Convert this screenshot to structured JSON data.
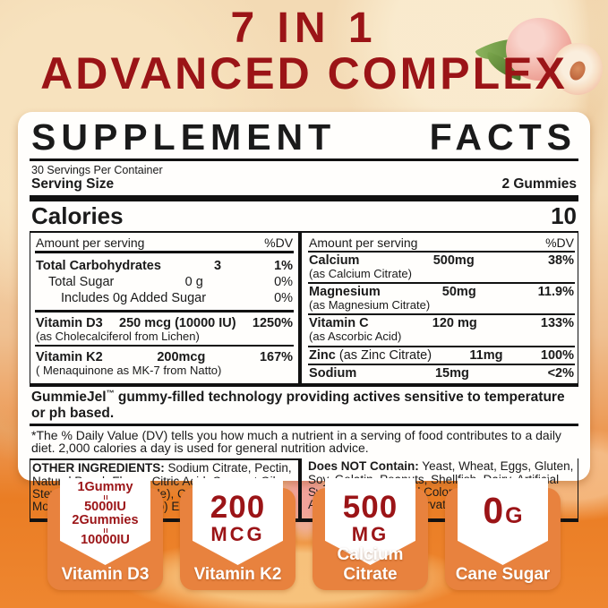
{
  "colors": {
    "brand_red": "#9b1417",
    "badge_orange": "#e8823e",
    "background_orange": "#ed7d24",
    "panel_white": "#fffefc"
  },
  "header": {
    "line1": "7 IN 1",
    "line2": "ADVANCED COMPLEX"
  },
  "supplement": {
    "title": "SUPPLEMENT FACTS",
    "servings": "30 Servings Per Container",
    "serving_size_label": "Serving Size",
    "serving_size_value": "2 Gummies",
    "calories_label": "Calories",
    "calories_value": "10",
    "col_header_amount": "Amount per serving",
    "col_header_dv": "%DV",
    "left_rows": {
      "carbs": {
        "name": "Total Carbohydrates",
        "amount": "3",
        "dv": "1%"
      },
      "sugar": {
        "name": "Total Sugar",
        "amount": "0 g",
        "dv": "0%"
      },
      "added_sugar": {
        "name": "Includes 0g Added Sugar",
        "dv": "0%"
      },
      "d3": {
        "name": "Vitamin D3",
        "amount": "250 mcg (10000 IU)",
        "dv": "1250%",
        "sub": "(as Cholecalciferol from Lichen)"
      },
      "k2": {
        "name": "Vitamin K2",
        "amount": "200mcg",
        "dv": "167%",
        "sub": "( Menaquinone as MK-7 from Natto)"
      }
    },
    "right_rows": {
      "calcium": {
        "name": "Calcium",
        "amount": "500mg",
        "dv": "38%",
        "sub": "(as Calcium Citrate)"
      },
      "magnesium": {
        "name": "Magnesium",
        "amount": "50mg",
        "dv": "11.9%",
        "sub": "(as Magnesium Citrate)"
      },
      "vitc": {
        "name": "Vitamin C",
        "amount": "120 mg",
        "dv": "133%",
        "sub": "(as Ascorbic Acid)"
      },
      "zinc": {
        "name": "Zinc",
        "name_note": " (as Zinc Citrate)",
        "amount": "11mg",
        "dv": "100%"
      },
      "sodium": {
        "name": "Sodium",
        "amount": "15mg",
        "dv": "<2%"
      }
    },
    "gummiejel": {
      "brand": "GummieJel",
      "tm": "™",
      "text": " gummy-filled technology providing actives sensitive to temperature or ph based."
    },
    "footnote": "*The % Daily Value (DV) tells you how much a nutrient in a serving of food contributes to a daily diet. 2,000 calories a day is used for general nutrition advice.",
    "other_ingredients_label": "OTHER INGREDIENTS:",
    "other_ingredients_text": " Sodium Citrate, Pectin, Natural Peach Flavor, Citric Acid, Coconut Oil, Stevia Extract(Stevioside), Carnauba Wax, Monk Fruit (Luo han guo) Extract.",
    "not_contain_label": "Does NOT Contain:",
    "not_contain_text": " Yeast, Wheat, Eggs, Gluten, Soy, Gelatin, Peanuts, Shellfish, Dairy, Artificial Sweeteners, Artificial Colors, Artificial Flavors, Agave, Artificial Preservatives and Salicylates."
  },
  "badges": [
    {
      "lines": [
        "1Gummy",
        "=",
        "5000IU",
        "2Gummies",
        "=",
        "10000IU"
      ],
      "label": "Vitamin D3"
    },
    {
      "value": "200",
      "unit": "MCG",
      "label": "Vitamin K2"
    },
    {
      "value": "500",
      "unit": "MG",
      "label": "Calcium Citrate"
    },
    {
      "value": "0",
      "unit": "G",
      "label": "Cane Sugar"
    }
  ]
}
